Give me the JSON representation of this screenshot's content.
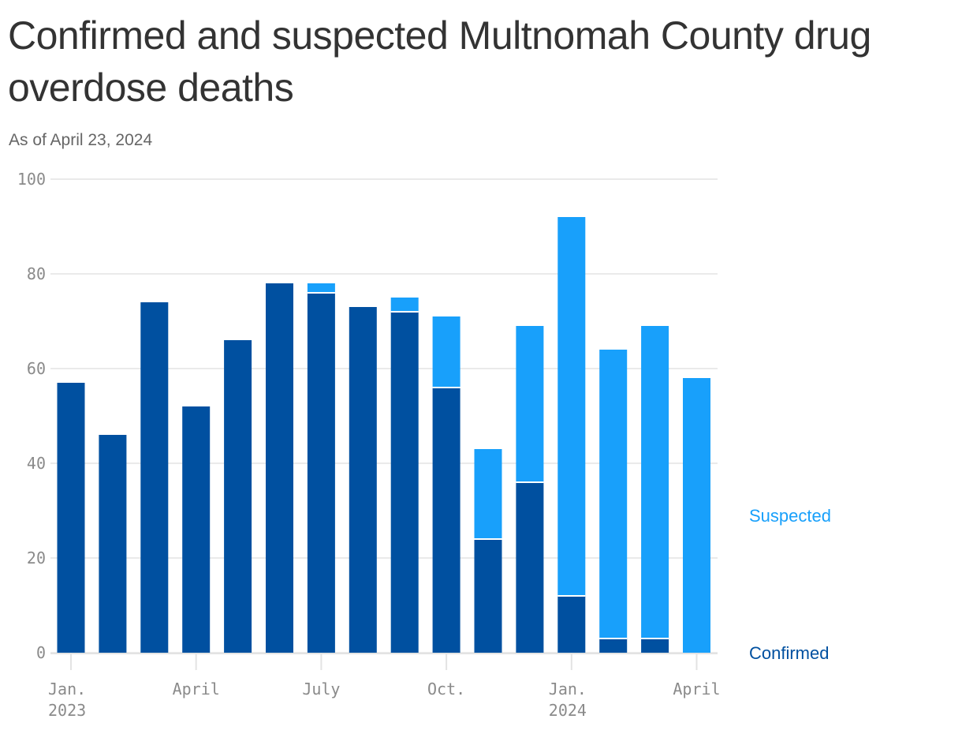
{
  "title": "Confirmed and suspected Multnomah County drug overdose deaths",
  "subtitle": "As of April 23, 2024",
  "colors": {
    "confirmed": "#0050a0",
    "suspected": "#18a0fb",
    "grid": "#e3e3e3",
    "tick": "#8a8a8a"
  },
  "chart_data": {
    "type": "bar",
    "stacked": true,
    "months": [
      "2023-01",
      "2023-02",
      "2023-03",
      "2023-04",
      "2023-05",
      "2023-06",
      "2023-07",
      "2023-08",
      "2023-09",
      "2023-10",
      "2023-11",
      "2023-12",
      "2024-01",
      "2024-02",
      "2024-03",
      "2024-04"
    ],
    "series": [
      {
        "name": "Confirmed",
        "values": [
          57,
          46,
          74,
          52,
          66,
          78,
          76,
          73,
          72,
          56,
          24,
          36,
          12,
          3,
          3,
          0
        ]
      },
      {
        "name": "Suspected",
        "values": [
          0,
          0,
          0,
          0,
          0,
          0,
          2,
          0,
          3,
          15,
          19,
          33,
          80,
          61,
          66,
          58
        ]
      }
    ],
    "ylim": [
      0,
      100
    ],
    "yticks": [
      0,
      20,
      40,
      60,
      80,
      100
    ],
    "xticks": [
      {
        "label": "Jan.",
        "sublabel": "2023",
        "month_index": 0
      },
      {
        "label": "April",
        "sublabel": "",
        "month_index": 3
      },
      {
        "label": "July",
        "sublabel": "",
        "month_index": 6
      },
      {
        "label": "Oct.",
        "sublabel": "",
        "month_index": 9
      },
      {
        "label": "Jan.",
        "sublabel": "2024",
        "month_index": 12
      },
      {
        "label": "April",
        "sublabel": "",
        "month_index": 15
      }
    ],
    "legend_placement": "right, aligned to series"
  }
}
